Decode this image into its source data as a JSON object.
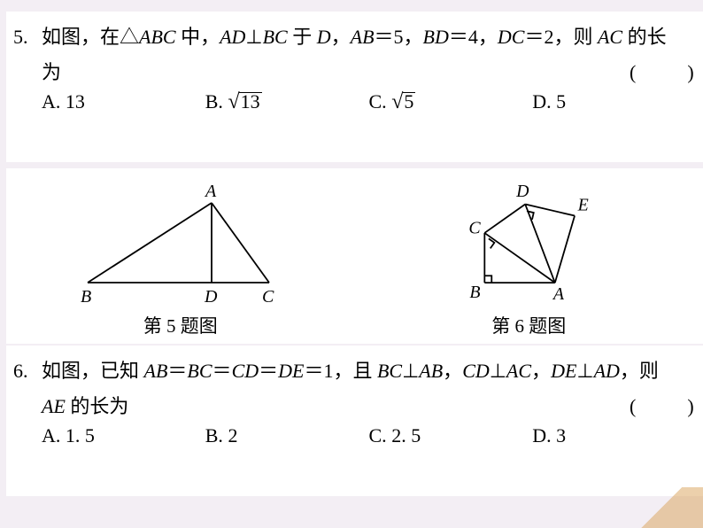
{
  "q5": {
    "num": "5.",
    "text_line1": "如图，在△<span class=mi>ABC</span> 中，<span class=mi>AD</span>⊥<span class=mi>BC</span> 于 <span class=mi>D</span>，<span class=mi>AB</span>＝5，<span class=mi>BD</span>＝4，<span class=mi>DC</span>＝2，则 <span class=mi>AC</span> 的长",
    "text_line2": "为",
    "paren": "(　)",
    "options": {
      "A": "13",
      "B_sqrt": "13",
      "C_sqrt": "5",
      "D": "5"
    }
  },
  "figs": {
    "cap5": "第 5 题图",
    "cap6": "第 6 题图",
    "fig5": {
      "labels": {
        "A": "A",
        "B": "B",
        "D": "D",
        "C": "C"
      },
      "stroke": "#000000",
      "stroke_width": 1.8,
      "font_size": 20,
      "font_style": "italic"
    },
    "fig6": {
      "labels": {
        "A": "A",
        "B": "B",
        "C": "C",
        "D": "D",
        "E": "E"
      },
      "stroke": "#000000",
      "stroke_width": 1.8,
      "font_size": 20,
      "font_style": "italic"
    }
  },
  "q6": {
    "num": "6.",
    "text_line1": "如图，已知 <span class=mi>AB</span>＝<span class=mi>BC</span>＝<span class=mi>CD</span>＝<span class=mi>DE</span>＝1，且 <span class=mi>BC</span>⊥<span class=mi>AB</span>，<span class=mi>CD</span>⊥<span class=mi>AC</span>，<span class=mi>DE</span>⊥<span class=mi>AD</span>，则",
    "text_line2": "<span class=mi>AE</span> 的长为",
    "paren": "(　)",
    "options": {
      "A": "1. 5",
      "B": "2",
      "C": "2. 5",
      "D": "3"
    }
  }
}
